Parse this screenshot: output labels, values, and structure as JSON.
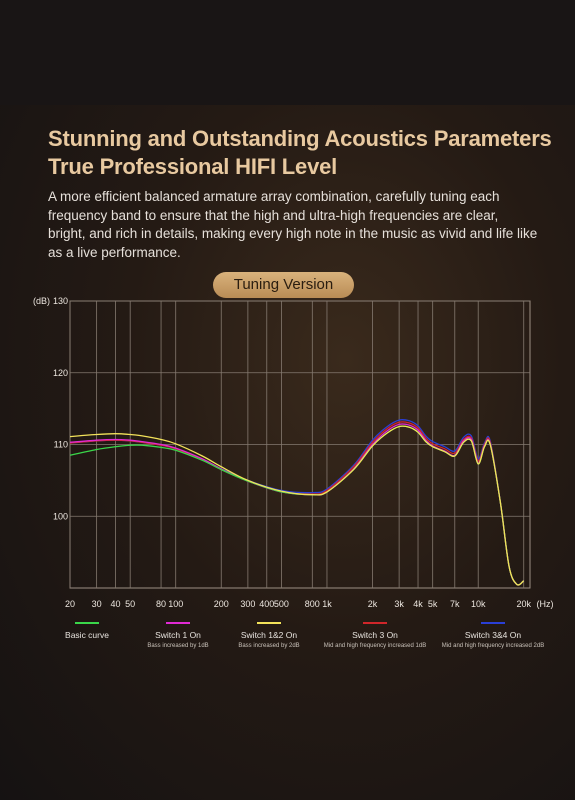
{
  "header": {
    "title_line1": "Stunning and Outstanding Acoustics Parameters",
    "title_line2": "True Professional HIFI Level",
    "description": "A more efficient balanced armature array combination, carefully tuning each frequency band to ensure that the high and ultra-high frequencies are clear, bright, and rich in details, making every high note in the music as vivid and life like as a live performance."
  },
  "badge": {
    "label": "Tuning Version"
  },
  "chart_data": {
    "type": "line",
    "ylabel": "(dB)",
    "xlabel": "(Hz)",
    "ylim": [
      90,
      130
    ],
    "xscale": "log",
    "xlim": [
      20,
      22000
    ],
    "y_ticks": [
      100,
      110,
      120,
      130
    ],
    "x_ticks": [
      {
        "v": 20,
        "label": "20"
      },
      {
        "v": 30,
        "label": "30"
      },
      {
        "v": 40,
        "label": "40"
      },
      {
        "v": 50,
        "label": "50"
      },
      {
        "v": 80,
        "label": "80"
      },
      {
        "v": 100,
        "label": "100"
      },
      {
        "v": 200,
        "label": "200"
      },
      {
        "v": 300,
        "label": "300"
      },
      {
        "v": 400,
        "label": "400"
      },
      {
        "v": 500,
        "label": "500"
      },
      {
        "v": 800,
        "label": "800"
      },
      {
        "v": 1000,
        "label": "1k"
      },
      {
        "v": 2000,
        "label": "2k"
      },
      {
        "v": 3000,
        "label": "3k"
      },
      {
        "v": 4000,
        "label": "4k"
      },
      {
        "v": 5000,
        "label": "5k"
      },
      {
        "v": 7000,
        "label": "7k"
      },
      {
        "v": 10000,
        "label": "10k"
      },
      {
        "v": 20000,
        "label": "20k"
      }
    ],
    "grid": true,
    "legend_position": "bottom",
    "series": [
      {
        "name": "Basic curve",
        "color": "#3ad64a",
        "x": [
          20,
          30,
          40,
          50,
          60,
          80,
          100,
          150,
          200,
          300,
          500,
          800,
          1000,
          1500,
          2000,
          2500,
          3000,
          3500,
          4000,
          4500,
          5000,
          6000,
          7000,
          8000,
          9000,
          10000,
          11000,
          12000,
          14000,
          16000,
          18000,
          20000
        ],
        "y": [
          108.5,
          109.3,
          109.7,
          109.9,
          109.9,
          109.6,
          109.2,
          107.8,
          106.5,
          104.9,
          103.4,
          103.0,
          103.4,
          106.5,
          109.8,
          111.6,
          112.5,
          112.4,
          111.7,
          110.4,
          109.7,
          109.0,
          108.4,
          110.3,
          110.5,
          107.3,
          109.7,
          110.0,
          102.0,
          93.0,
          90.5,
          91.0
        ]
      },
      {
        "name": "Switch 1 On",
        "color": "#e02ad4",
        "x": [
          20,
          30,
          40,
          50,
          60,
          80,
          100,
          150,
          200,
          300,
          500,
          800,
          1000,
          1500,
          2000,
          2500,
          3000,
          3500,
          4000,
          4500,
          5000,
          6000,
          7000,
          8000,
          9000,
          10000,
          11000,
          12000,
          14000,
          16000,
          18000,
          20000
        ],
        "y": [
          110.3,
          110.6,
          110.7,
          110.6,
          110.4,
          110.0,
          109.5,
          108.0,
          106.6,
          104.9,
          103.4,
          103.0,
          103.4,
          106.6,
          110.0,
          111.9,
          112.8,
          112.7,
          112.0,
          110.6,
          109.8,
          109.1,
          108.5,
          110.5,
          110.7,
          107.4,
          109.8,
          110.1,
          102.0,
          93.0,
          90.5,
          91.0
        ]
      },
      {
        "name": "Switch 1&2 On",
        "color": "#f2e25a",
        "x": [
          20,
          30,
          40,
          50,
          60,
          80,
          100,
          150,
          200,
          300,
          500,
          800,
          1000,
          1500,
          2000,
          2500,
          3000,
          3500,
          4000,
          4500,
          5000,
          6000,
          7000,
          8000,
          9000,
          10000,
          11000,
          12000,
          14000,
          16000,
          18000,
          20000
        ],
        "y": [
          111.1,
          111.4,
          111.5,
          111.4,
          111.2,
          110.7,
          110.1,
          108.4,
          106.9,
          105.0,
          103.5,
          103.0,
          103.4,
          106.5,
          109.8,
          111.6,
          112.5,
          112.4,
          111.7,
          110.4,
          109.7,
          109.0,
          108.4,
          110.3,
          110.5,
          107.3,
          109.7,
          110.0,
          102.0,
          93.0,
          90.5,
          91.0
        ]
      },
      {
        "name": "Switch 3 On",
        "color": "#d0262a",
        "x": [
          20,
          30,
          40,
          50,
          60,
          80,
          100,
          150,
          200,
          300,
          500,
          800,
          1000,
          1500,
          2000,
          2500,
          3000,
          3500,
          4000,
          4500,
          5000,
          6000,
          7000,
          8000,
          9000,
          10000,
          11000,
          12000,
          14000,
          16000,
          18000,
          20000
        ],
        "y": [
          110.2,
          110.5,
          110.6,
          110.5,
          110.3,
          109.9,
          109.4,
          107.9,
          106.5,
          104.9,
          103.4,
          103.1,
          103.6,
          106.9,
          110.3,
          112.2,
          113.1,
          113.0,
          112.3,
          110.9,
          110.1,
          109.4,
          108.8,
          110.7,
          110.9,
          107.7,
          110.0,
          110.3,
          102.0,
          93.0,
          90.5,
          91.0
        ]
      },
      {
        "name": "Switch 3&4 On",
        "color": "#2a3fd6",
        "x": [
          20,
          30,
          40,
          50,
          60,
          80,
          100,
          150,
          200,
          300,
          500,
          800,
          1000,
          1500,
          2000,
          2500,
          3000,
          3500,
          4000,
          4500,
          5000,
          6000,
          7000,
          8000,
          9000,
          10000,
          11000,
          12000,
          14000,
          16000,
          18000,
          20000
        ],
        "y": [
          110.2,
          110.5,
          110.6,
          110.5,
          110.3,
          109.9,
          109.4,
          107.9,
          106.6,
          105.0,
          103.6,
          103.3,
          103.8,
          107.1,
          110.6,
          112.5,
          113.4,
          113.3,
          112.6,
          111.2,
          110.4,
          109.7,
          109.1,
          111.0,
          111.2,
          108.0,
          110.2,
          110.5,
          102.0,
          93.0,
          90.5,
          91.0
        ]
      }
    ]
  },
  "legend": [
    {
      "label": "Basic curve",
      "note": "",
      "color": "#3ad64a"
    },
    {
      "label": "Switch 1 On",
      "note": "Bass increased by 1dB",
      "color": "#e02ad4"
    },
    {
      "label": "Switch 1&2 On",
      "note": "Bass increased by 2dB",
      "color": "#f2e25a"
    },
    {
      "label": "Switch 3 On",
      "note": "Mid and high frequency increased 1dB",
      "color": "#d0262a"
    },
    {
      "label": "Switch 3&4 On",
      "note": "Mid and high frequency increased 2dB",
      "color": "#2a3fd6"
    }
  ]
}
